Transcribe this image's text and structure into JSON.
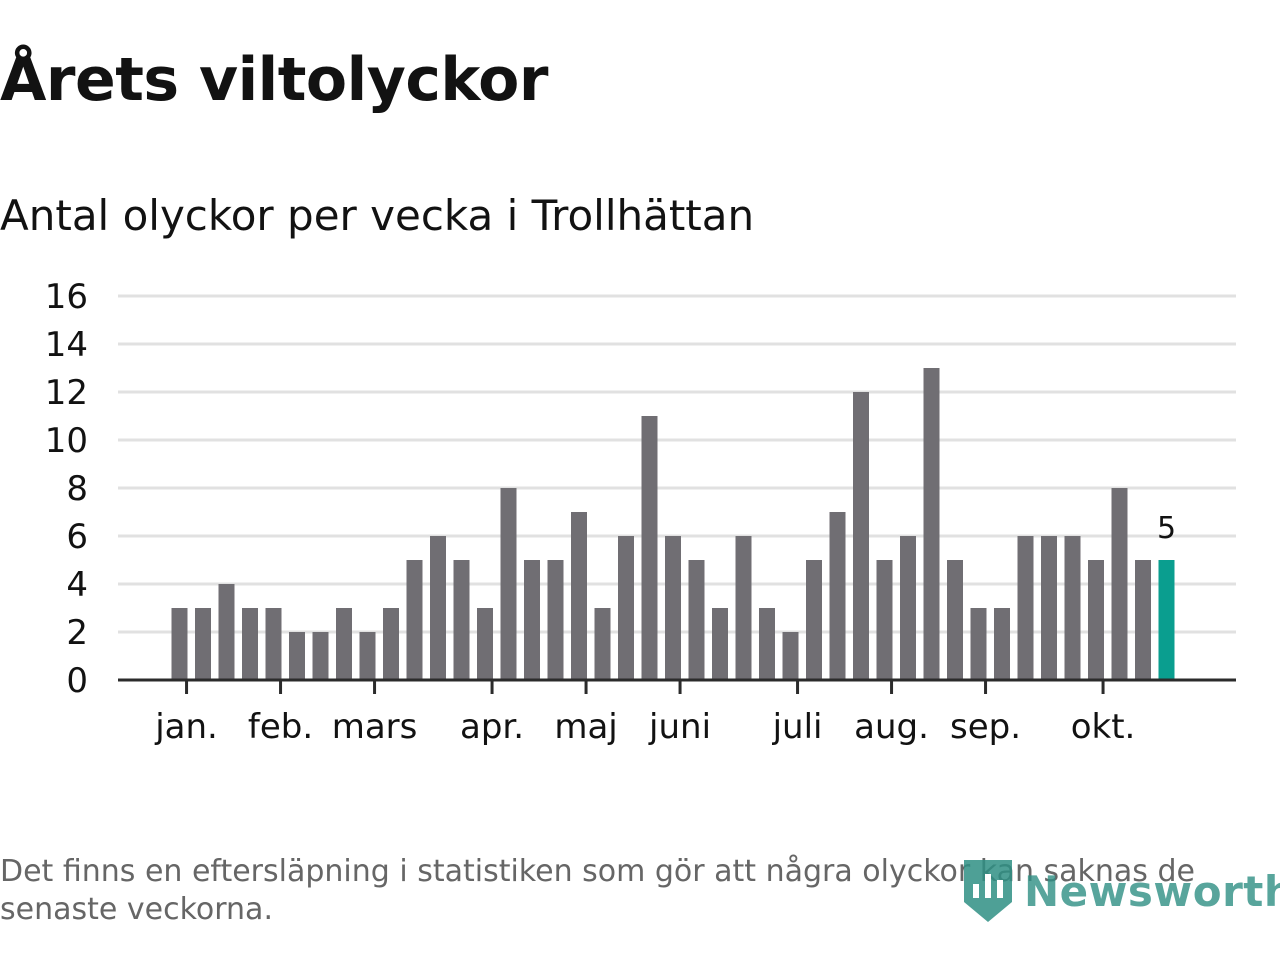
{
  "title": "Årets viltolyckor",
  "subtitle": "Antal olyckor per vecka i Trollhättan",
  "footnote": "Det finns en eftersläpning i statistiken som gör att några olyckor kan saknas de senaste veckorna.",
  "logo": {
    "text": "Newsworthy",
    "icon": "newsworthy-logo-icon",
    "color": "#2f8f84"
  },
  "chart_data": {
    "type": "bar",
    "title": "Årets viltolyckor",
    "subtitle": "Antal olyckor per vecka i Trollhättan",
    "xlabel": "",
    "ylabel": "",
    "ylim": [
      0,
      16
    ],
    "yticks": [
      0,
      2,
      4,
      6,
      8,
      10,
      12,
      14,
      16
    ],
    "grid": true,
    "weeks": [
      1,
      2,
      3,
      4,
      5,
      6,
      7,
      8,
      9,
      10,
      11,
      12,
      13,
      14,
      15,
      16,
      17,
      18,
      19,
      20,
      21,
      22,
      23,
      24,
      25,
      26,
      27,
      28,
      29,
      30,
      31,
      32,
      33,
      34,
      35,
      36,
      37,
      38,
      39,
      40,
      41,
      42,
      43
    ],
    "values": [
      3,
      3,
      4,
      3,
      3,
      2,
      2,
      3,
      2,
      3,
      5,
      6,
      5,
      3,
      8,
      5,
      5,
      7,
      3,
      6,
      11,
      6,
      5,
      3,
      6,
      3,
      2,
      5,
      7,
      12,
      5,
      6,
      13,
      5,
      3,
      3,
      6,
      6,
      6,
      5,
      8,
      5,
      5
    ],
    "month_ticks": [
      {
        "label": "jan.",
        "position": 0.3
      },
      {
        "label": "feb.",
        "position": 4.3
      },
      {
        "label": "mars",
        "position": 8.3
      },
      {
        "label": "apr.",
        "position": 13.3
      },
      {
        "label": "maj",
        "position": 17.3
      },
      {
        "label": "juni",
        "position": 21.3
      },
      {
        "label": "juli",
        "position": 26.3
      },
      {
        "label": "aug.",
        "position": 30.3
      },
      {
        "label": "sep.",
        "position": 34.3
      },
      {
        "label": "okt.",
        "position": 39.3
      }
    ],
    "highlight": {
      "index": 42,
      "label": "5",
      "color": "#0a9e8f"
    },
    "bar_color": "#706e73",
    "grid_color": "#e1e1e1",
    "axis_color": "#2b2b2b"
  }
}
